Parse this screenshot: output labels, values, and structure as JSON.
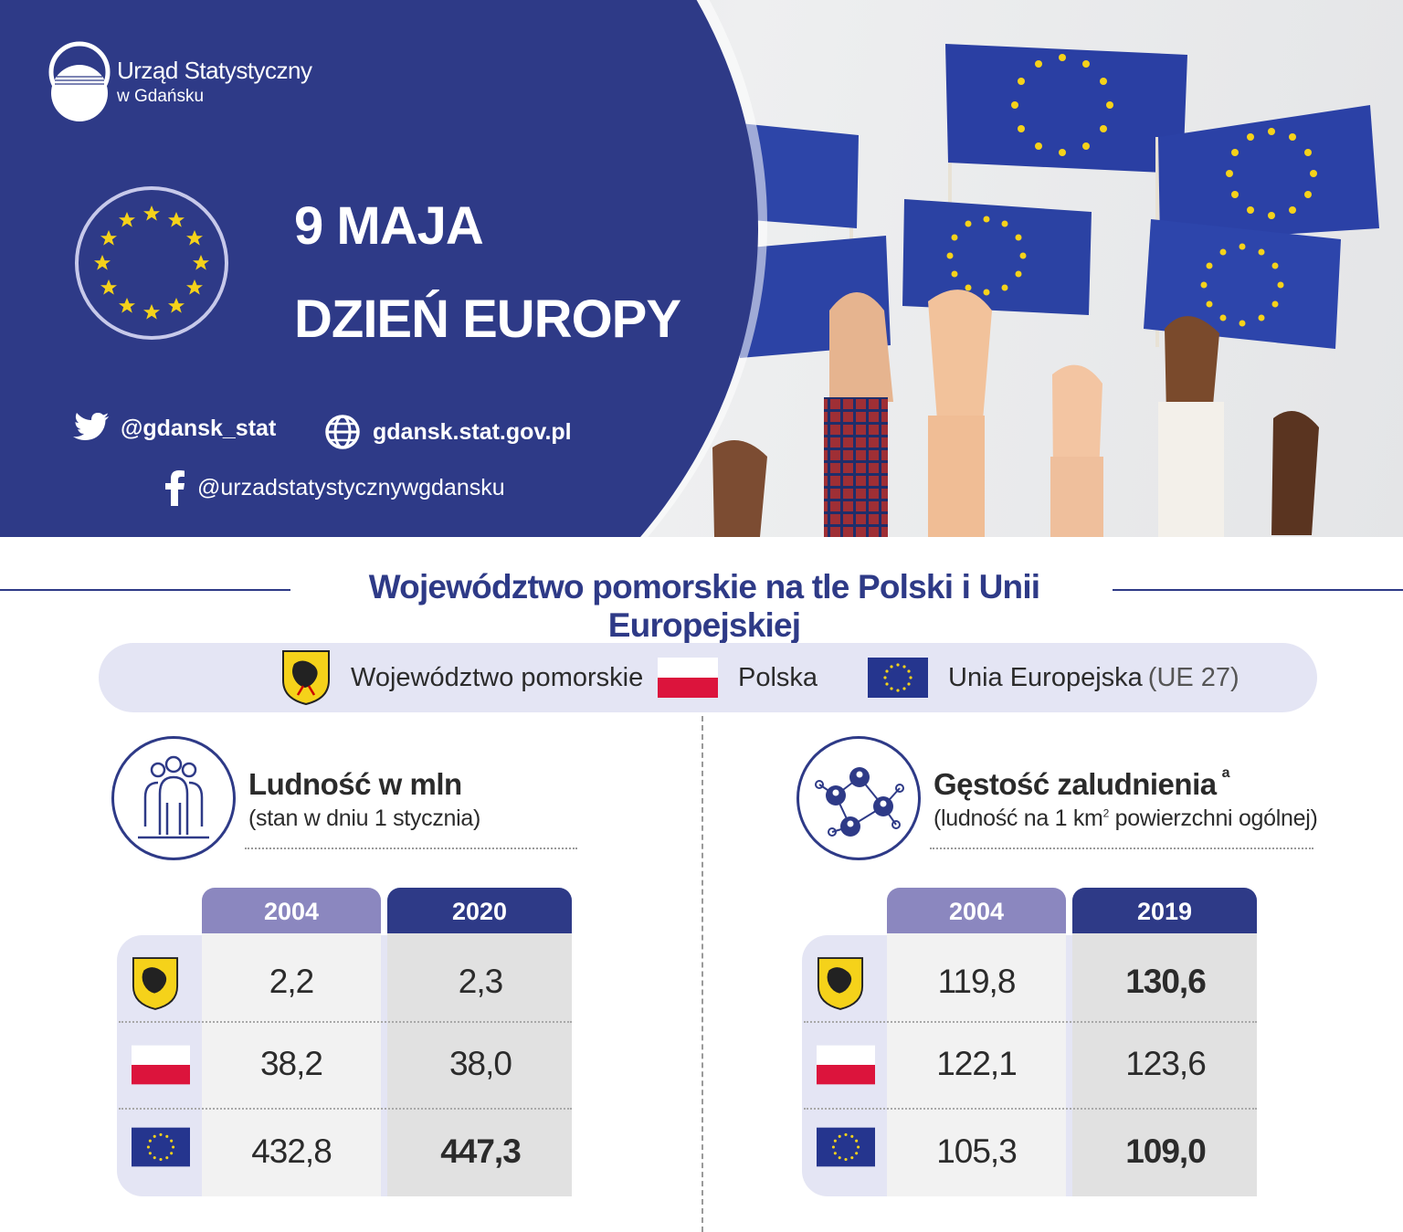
{
  "header": {
    "org_line1": "Urząd Statystyczny",
    "org_line2": "w Gdańsku",
    "date": "9 MAJA",
    "event": "DZIEŃ EUROPY",
    "twitter": "@gdansk_stat",
    "website": "gdansk.stat.gov.pl",
    "facebook": "@urzadstatystycznywgdansku"
  },
  "section_title": "Województwo pomorskie na tle Polski i Unii Europejskiej",
  "legend": {
    "pomorskie": "Województwo pomorskie",
    "polska": "Polska",
    "ue": "Unia Europejska",
    "ue_note": "(UE 27)"
  },
  "population": {
    "title": "Ludność w mln",
    "subtitle": "(stan w dniu 1 stycznia)",
    "years": [
      "2004",
      "2020"
    ],
    "rows": [
      {
        "region": "pomorskie",
        "values": [
          "2,2",
          "2,3"
        ]
      },
      {
        "region": "polska",
        "values": [
          "38,2",
          "38,0"
        ]
      },
      {
        "region": "ue",
        "values": [
          "432,8",
          "447,3"
        ]
      }
    ]
  },
  "density": {
    "title": "Gęstość zaludnienia",
    "footnote_mark": "a",
    "subtitle_pre": "(ludność na 1 km",
    "subtitle_sup": "2",
    "subtitle_post": " powierzchni ogólnej)",
    "years": [
      "2004",
      "2019"
    ],
    "rows": [
      {
        "region": "pomorskie",
        "values": [
          "119,8",
          "130,6"
        ]
      },
      {
        "region": "polska",
        "values": [
          "122,1",
          "123,6"
        ]
      },
      {
        "region": "ue",
        "values": [
          "105,3",
          "109,0"
        ]
      }
    ]
  },
  "colors": {
    "navy": "#2e3a87",
    "lavender": "#8b87bf",
    "legend_bg": "#e4e5f4",
    "eu_star": "#f5d21a",
    "pl_red": "#dc143c"
  },
  "icons": [
    "twitter-icon",
    "globe-icon",
    "facebook-icon",
    "people-icon",
    "network-icon",
    "coat-of-arms-icon",
    "polish-flag-icon",
    "eu-flag-icon"
  ]
}
